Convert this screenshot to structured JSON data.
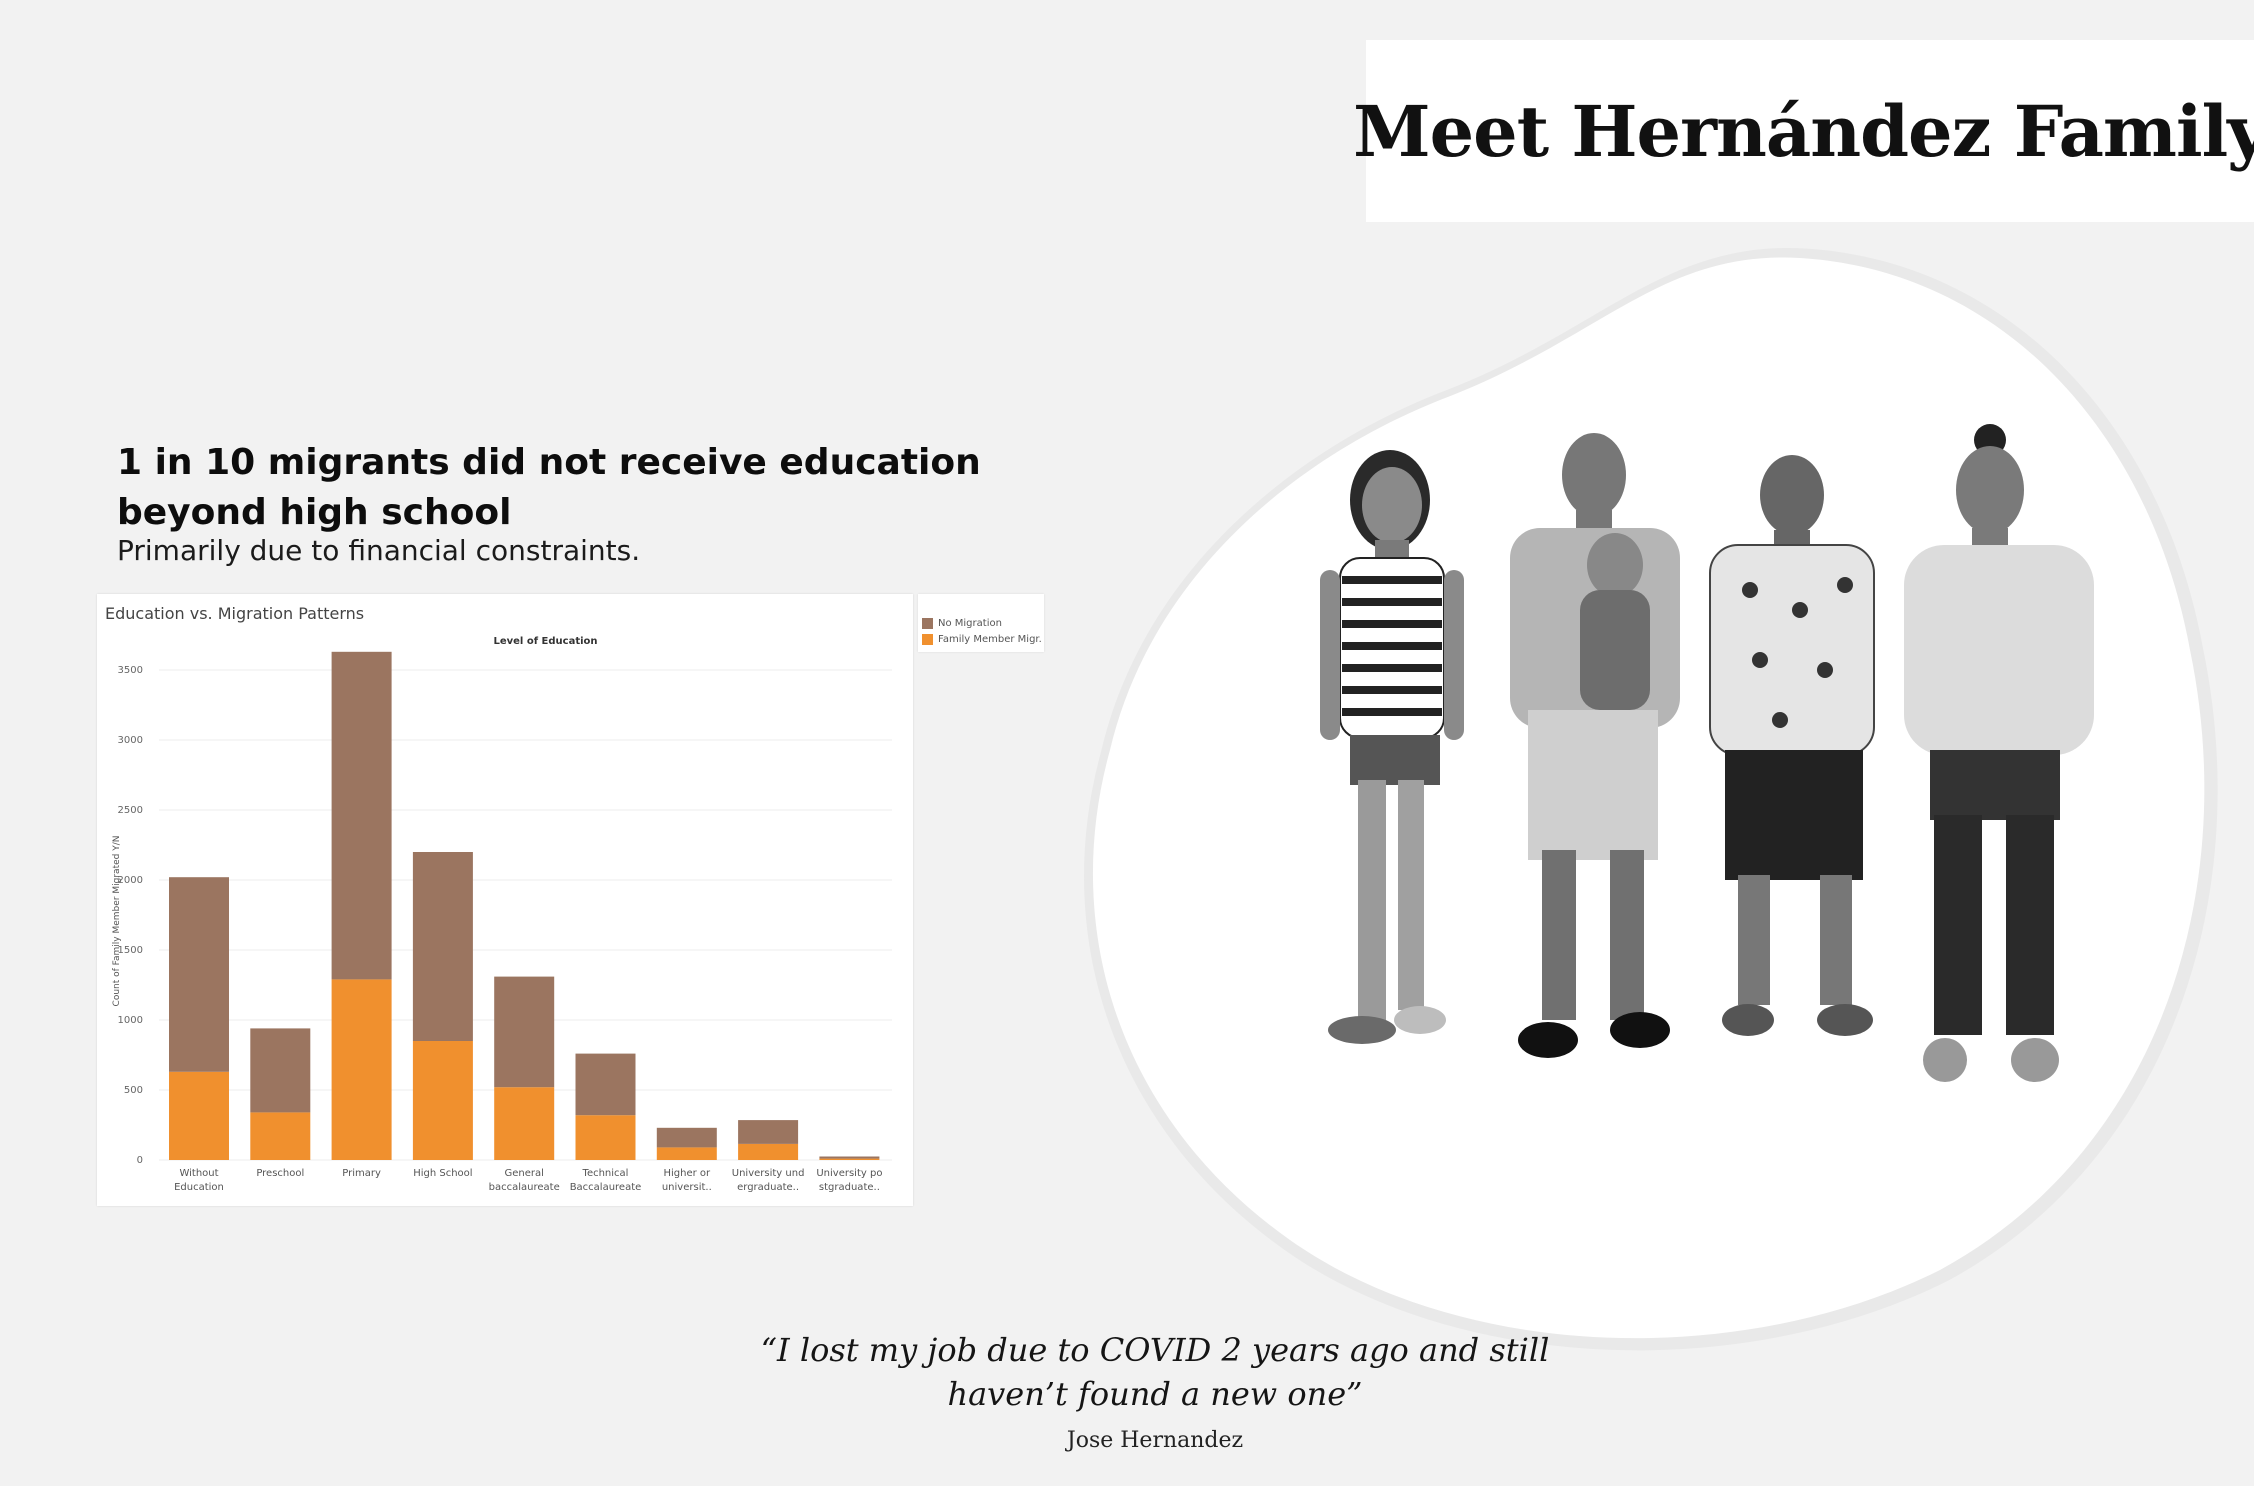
{
  "page": {
    "title": "Meet Hernández Family",
    "headline": "1 in 10 migrants did not receive education beyond high school",
    "subhead": "Primarily due to financial constraints.",
    "quote": "“I lost my job due to COVID 2 years ago and still haven’t found a new one”",
    "quote_author": "Jose Hernandez",
    "photo": "family-portrait-grayscale"
  },
  "colors": {
    "no_migration": "#9b7560",
    "family_member_migrated": "#f0902e",
    "background": "#f2f2f2"
  },
  "chart_data": {
    "type": "bar",
    "stacked": true,
    "title": "Education vs. Migration Patterns",
    "xlabel": "Level of Education",
    "ylabel": "Count of Family Member Migrated Y/N",
    "ylim": [
      0,
      3700
    ],
    "yticks": [
      0,
      500,
      1000,
      1500,
      2000,
      2500,
      3000,
      3500
    ],
    "grid": true,
    "legend_position": "right",
    "categories": [
      [
        "Without",
        "Education"
      ],
      [
        "Preschool"
      ],
      [
        "Primary"
      ],
      [
        "High School"
      ],
      [
        "General",
        "baccalaureate"
      ],
      [
        "Technical",
        "Baccalaureate"
      ],
      [
        "Higher or",
        "universit.."
      ],
      [
        "University und",
        "ergraduate.."
      ],
      [
        "University po",
        "stgraduate.."
      ]
    ],
    "series": [
      {
        "name": "Family Member Migr..",
        "values": [
          630,
          340,
          1290,
          850,
          520,
          320,
          90,
          115,
          10
        ]
      },
      {
        "name": "No Migration",
        "values": [
          1390,
          600,
          2340,
          1350,
          790,
          440,
          140,
          170,
          15
        ]
      }
    ]
  }
}
